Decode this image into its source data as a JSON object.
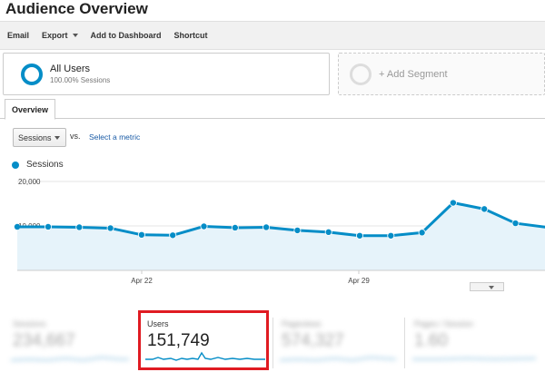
{
  "page": {
    "title": "Audience Overview"
  },
  "toolbar": {
    "email": "Email",
    "export": "Export",
    "add_dashboard": "Add to Dashboard",
    "shortcut": "Shortcut"
  },
  "segments": {
    "active": {
      "name": "All Users",
      "sub": "100.00% Sessions"
    },
    "add": {
      "label": "+ Add Segment"
    }
  },
  "tabs": {
    "overview": "Overview"
  },
  "controls": {
    "metric": "Sessions",
    "vs": "vs.",
    "select_metric": "Select a metric"
  },
  "colors": {
    "series": "#058dc7",
    "area": "#e6f3fa",
    "highlight": "#e01b22"
  },
  "chart_data": {
    "type": "area",
    "series": [
      {
        "name": "Sessions",
        "values": [
          9800,
          9700,
          9500,
          8000,
          7900,
          9900,
          9600,
          9700,
          9000,
          8600,
          7800,
          7800,
          8500,
          15200,
          13800,
          10600,
          9700
        ]
      }
    ],
    "x_ticks": [
      "Apr 22",
      "Apr 29"
    ],
    "y_ticks": [
      "10,000",
      "20,000"
    ],
    "ylim": [
      0,
      20000
    ],
    "grid": true
  },
  "scorecards": [
    {
      "label": "Sessions",
      "value": "234,667",
      "blurred": true
    },
    {
      "label": "Users",
      "value": "151,749",
      "blurred": false
    },
    {
      "label": "Pageviews",
      "value": "574,327",
      "blurred": true
    },
    {
      "label": "Pages / Session",
      "value": "1.60",
      "blurred": true
    }
  ]
}
